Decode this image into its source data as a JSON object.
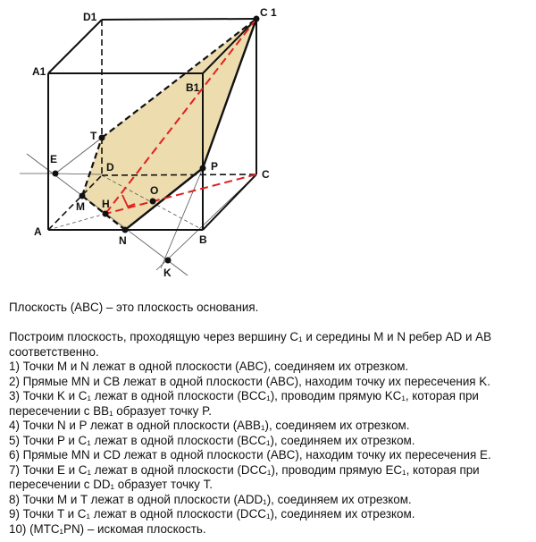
{
  "diagram": {
    "labels": {
      "A": "A",
      "B": "B",
      "C": "C",
      "D": "D",
      "A1": "A1",
      "B1": "B1",
      "C1": "C 1",
      "D1": "D1",
      "E": "E",
      "T": "T",
      "M": "M",
      "H": "H",
      "N": "N",
      "O": "O",
      "P": "P",
      "K": "K"
    },
    "colors": {
      "section_fill": "#ecdcae",
      "edges": "#111111",
      "red_dashed": "#e02020",
      "aux_lines": "#555555"
    }
  },
  "text": {
    "lines": [
      "Плоскость (ABC) – это плоскость основания.",
      "",
      "Построим плоскость, проходящую через вершину C₁ и середины M и N ребер AD и AB",
      "соответственно.",
      "1) Точки M и N лежат в одной плоскости (ABC), соединяем их отрезком.",
      "2) Прямые MN и CB лежат в одной плоскости (ABC), находим точку их пересечения K.",
      "3) Точки K и C₁ лежат в одной плоскости (BCC₁), проводим прямую KC₁, которая при",
      "пересечении с BB₁ образует точку P.",
      "4) Точки N и P лежат в одной плоскости (ABB₁), соединяем их отрезком.",
      "5) Точки P и C₁ лежат в одной плоскости (BCC₁), соединяем их отрезком.",
      "6) Прямые MN и CD лежат в одной плоскости (ABC), находим точку их пересечения E.",
      "7) Точки E и C₁ лежат в одной плоскости (DCC₁), проводим прямую EC₁, которая при",
      "пересечении с DD₁ образует точку T.",
      "8) Точки M и T лежат в одной плоскости (ADD₁), соединяем их отрезком.",
      "9) Точки T и C₁ лежат в одной плоскости (DCC₁), соединяем их отрезком.",
      "10) (MTC₁PN) – искомая плоскость."
    ]
  }
}
